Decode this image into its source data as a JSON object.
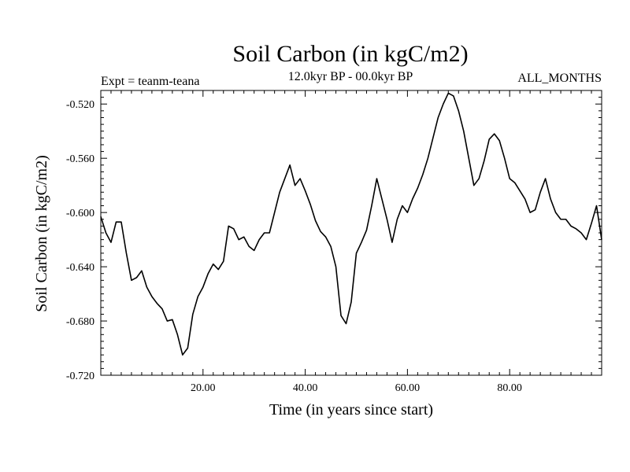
{
  "chart_data": {
    "type": "line",
    "title": "Soil Carbon (in kgC/m2)",
    "subtitle": "12.0kyr BP - 00.0kyr BP",
    "left_annotation": "Expt = teanm-teana",
    "right_annotation": "ALL_MONTHS",
    "xlabel": "Time (in years since start)",
    "ylabel": "Soil Carbon (in kgC/m2)",
    "xlim": [
      0,
      98
    ],
    "ylim": [
      -0.72,
      -0.51
    ],
    "x_ticks": [
      20,
      40,
      60,
      80
    ],
    "x_tick_labels": [
      "20.00",
      "40.00",
      "60.00",
      "80.00"
    ],
    "y_ticks": [
      -0.52,
      -0.56,
      -0.6,
      -0.64,
      -0.68,
      -0.72
    ],
    "y_tick_labels": [
      "-0.520",
      "-0.560",
      "-0.600",
      "-0.640",
      "-0.680",
      "-0.720"
    ],
    "grid": false,
    "series": [
      {
        "x": [
          0,
          1,
          2,
          3,
          4,
          5,
          6,
          7,
          8,
          9,
          10,
          11,
          12,
          13,
          14,
          15,
          16,
          17,
          18,
          19,
          20,
          21,
          22,
          23,
          24,
          25,
          26,
          27,
          28,
          29,
          30,
          31,
          32,
          33,
          34,
          35,
          36,
          37,
          38,
          39,
          40,
          41,
          42,
          43,
          44,
          45,
          46,
          47,
          48,
          49,
          50,
          51,
          52,
          53,
          54,
          55,
          56,
          57,
          58,
          59,
          60,
          61,
          62,
          63,
          64,
          65,
          66,
          67,
          68,
          69,
          70,
          71,
          72,
          73,
          74,
          75,
          76,
          77,
          78,
          79,
          80,
          81,
          82,
          83,
          84,
          85,
          86,
          87,
          88,
          89,
          90,
          91,
          92,
          93,
          94,
          95,
          96,
          97,
          98
        ],
        "values": [
          -0.603,
          -0.615,
          -0.622,
          -0.607,
          -0.607,
          -0.63,
          -0.65,
          -0.648,
          -0.643,
          -0.655,
          -0.662,
          -0.667,
          -0.671,
          -0.68,
          -0.679,
          -0.69,
          -0.705,
          -0.7,
          -0.675,
          -0.662,
          -0.655,
          -0.645,
          -0.638,
          -0.642,
          -0.636,
          -0.61,
          -0.612,
          -0.62,
          -0.618,
          -0.625,
          -0.628,
          -0.62,
          -0.615,
          -0.615,
          -0.6,
          -0.585,
          -0.575,
          -0.565,
          -0.58,
          -0.575,
          -0.584,
          -0.594,
          -0.606,
          -0.614,
          -0.618,
          -0.625,
          -0.64,
          -0.676,
          -0.682,
          -0.666,
          -0.63,
          -0.622,
          -0.613,
          -0.595,
          -0.575,
          -0.59,
          -0.605,
          -0.622,
          -0.605,
          -0.595,
          -0.6,
          -0.59,
          -0.582,
          -0.572,
          -0.56,
          -0.545,
          -0.53,
          -0.52,
          -0.512,
          -0.514,
          -0.525,
          -0.54,
          -0.56,
          -0.58,
          -0.575,
          -0.562,
          -0.546,
          -0.542,
          -0.547,
          -0.56,
          -0.575,
          -0.578,
          -0.584,
          -0.59,
          -0.6,
          -0.598,
          -0.585,
          -0.575,
          -0.59,
          -0.6,
          -0.605,
          -0.605,
          -0.61,
          -0.612,
          -0.615,
          -0.62,
          -0.608,
          -0.595,
          -0.62
        ]
      }
    ]
  }
}
